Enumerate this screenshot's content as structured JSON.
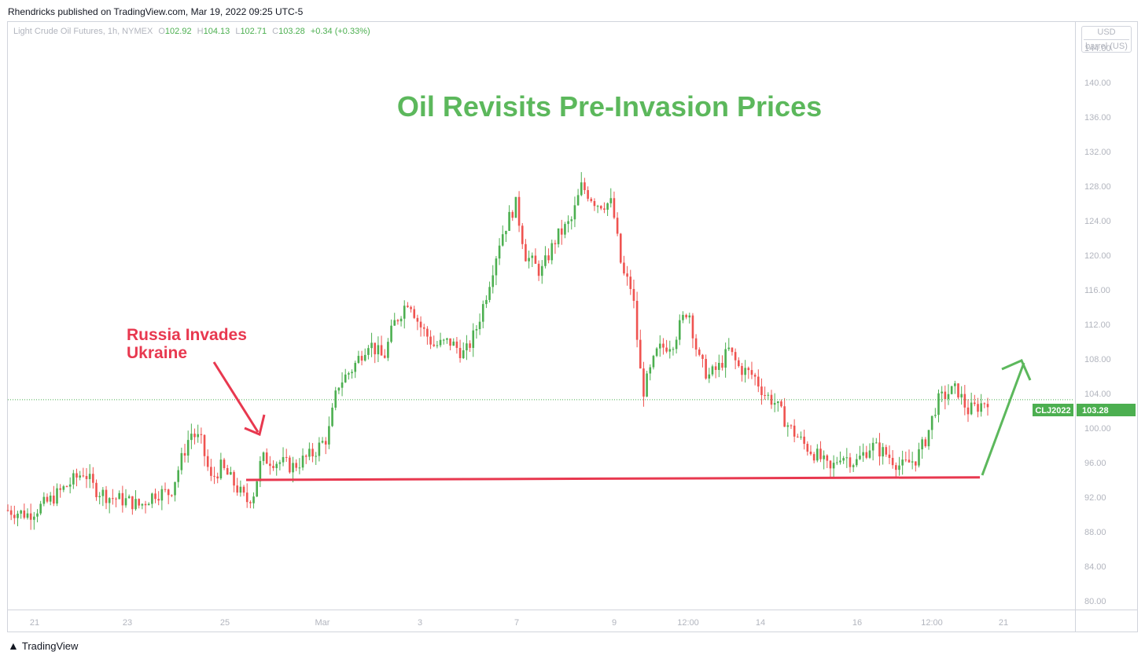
{
  "publisher": "Rhendricks published on TradingView.com, Mar 19, 2022 09:25 UTC-5",
  "legend": {
    "symbol": "Light Crude Oil Futures, 1h, NYMEX",
    "o_key": "O",
    "o": "102.92",
    "h_key": "H",
    "h": "104.13",
    "l_key": "L",
    "l": "102.71",
    "c_key": "C",
    "c": "103.28",
    "change": "+0.34 (+0.33%)"
  },
  "currency": {
    "unit": "USD",
    "sub": "barrel (US)"
  },
  "footer": {
    "brand": "TradingView"
  },
  "colors": {
    "up": "#4caf50",
    "down": "#ef5350",
    "title": "#5cb85c",
    "annotation": "#e8384f",
    "support": "#e8384f",
    "grid": "#f0f3fa"
  },
  "chart_data": {
    "type": "candlestick",
    "title": "Oil Revisits Pre-Invasion Prices",
    "ylim": [
      79,
      147
    ],
    "yticks": [
      "80.00",
      "84.00",
      "88.00",
      "92.00",
      "96.00",
      "100.00",
      "104.00",
      "108.00",
      "112.00",
      "116.00",
      "120.00",
      "124.00",
      "128.00",
      "132.00",
      "136.00",
      "140.00",
      "144.00"
    ],
    "xticks": [
      "21",
      "23",
      "25",
      "Mar",
      "3",
      "7",
      "9",
      "12:00",
      "14",
      "16",
      "12:00",
      "21"
    ],
    "last_price": {
      "symbol": "CLJ2022",
      "value": 103.28
    },
    "annotations": [
      {
        "text": "Russia Invades",
        "text2": "Ukraine"
      }
    ],
    "support_level": [
      94.0,
      94.3
    ],
    "path": [
      [
        0,
        90.5
      ],
      [
        0.02,
        90.0
      ],
      [
        0.04,
        91.5
      ],
      [
        0.06,
        93.5
      ],
      [
        0.075,
        95.0
      ],
      [
        0.085,
        93.0
      ],
      [
        0.1,
        92.0
      ],
      [
        0.12,
        91.5
      ],
      [
        0.13,
        91.0
      ],
      [
        0.145,
        92.5
      ],
      [
        0.16,
        92.5
      ],
      [
        0.17,
        96.0
      ],
      [
        0.18,
        99.5
      ],
      [
        0.19,
        98.5
      ],
      [
        0.2,
        94.0
      ],
      [
        0.21,
        95.5
      ],
      [
        0.22,
        94.0
      ],
      [
        0.235,
        91.5
      ],
      [
        0.242,
        92.5
      ],
      [
        0.25,
        96.5
      ],
      [
        0.27,
        96.0
      ],
      [
        0.28,
        95.5
      ],
      [
        0.3,
        97.0
      ],
      [
        0.315,
        99.0
      ],
      [
        0.325,
        105.0
      ],
      [
        0.34,
        107.0
      ],
      [
        0.355,
        110.0
      ],
      [
        0.37,
        108.0
      ],
      [
        0.38,
        112.0
      ],
      [
        0.395,
        115.0
      ],
      [
        0.405,
        112.0
      ],
      [
        0.42,
        109.5
      ],
      [
        0.435,
        110.0
      ],
      [
        0.45,
        108.5
      ],
      [
        0.46,
        111.0
      ],
      [
        0.47,
        115.0
      ],
      [
        0.485,
        122.0
      ],
      [
        0.5,
        126.0
      ],
      [
        0.51,
        120.0
      ],
      [
        0.525,
        118.0
      ],
      [
        0.54,
        122.0
      ],
      [
        0.555,
        124.0
      ],
      [
        0.565,
        128.0
      ],
      [
        0.58,
        126.0
      ],
      [
        0.595,
        126.0
      ],
      [
        0.605,
        118.0
      ],
      [
        0.615,
        116.0
      ],
      [
        0.625,
        104.0
      ],
      [
        0.64,
        109.0
      ],
      [
        0.655,
        110.0
      ],
      [
        0.67,
        114.0
      ],
      [
        0.68,
        108.0
      ],
      [
        0.69,
        106.0
      ],
      [
        0.7,
        107.0
      ],
      [
        0.71,
        109.0
      ],
      [
        0.72,
        107.0
      ],
      [
        0.735,
        106.0
      ],
      [
        0.745,
        104.0
      ],
      [
        0.755,
        103.0
      ],
      [
        0.77,
        100.0
      ],
      [
        0.785,
        98.0
      ],
      [
        0.8,
        96.5
      ],
      [
        0.81,
        95.0
      ],
      [
        0.82,
        97.0
      ],
      [
        0.835,
        96.0
      ],
      [
        0.85,
        98.0
      ],
      [
        0.865,
        97.0
      ],
      [
        0.88,
        95.5
      ],
      [
        0.895,
        96.5
      ],
      [
        0.905,
        99.0
      ],
      [
        0.915,
        103.0
      ],
      [
        0.925,
        104.0
      ],
      [
        0.935,
        104.5
      ],
      [
        0.945,
        102.0
      ],
      [
        0.955,
        102.5
      ],
      [
        0.965,
        103.3
      ]
    ]
  }
}
